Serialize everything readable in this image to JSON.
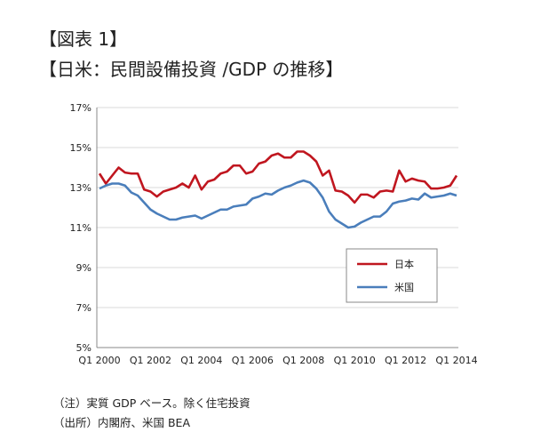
{
  "header": {
    "label": "【図表 1】",
    "title": "【日米：民間設備投資 /GDP の推移】"
  },
  "notes": [
    "（注）実質 GDP ベース。除く住宅投資",
    "（出所）内閣府、米国 BEA"
  ],
  "chart_data": {
    "type": "line",
    "title": "日米：民間設備投資 /GDP の推移",
    "xlabel": "",
    "ylabel": "",
    "x_start": "2000 Q1",
    "x_end": "2014 Q1",
    "frequency": "quarterly",
    "xticks": [
      "Q1 2000",
      "Q1 2002",
      "Q1 2004",
      "Q1 2006",
      "Q1 2008",
      "Q1 2010",
      "Q1 2012",
      "Q1 2014"
    ],
    "yticks": [
      "5%",
      "7%",
      "9%",
      "11%",
      "13%",
      "15%",
      "17%"
    ],
    "ylim": [
      5,
      17
    ],
    "grid": true,
    "legend_position": "lower-right",
    "series": [
      {
        "name": "日本",
        "color": "#c0161f",
        "values": [
          13.7,
          13.2,
          13.6,
          14.0,
          13.75,
          13.7,
          13.7,
          12.9,
          12.8,
          12.55,
          12.8,
          12.9,
          13.0,
          13.2,
          13.0,
          13.6,
          12.9,
          13.3,
          13.4,
          13.7,
          13.8,
          14.1,
          14.1,
          13.7,
          13.8,
          14.2,
          14.3,
          14.6,
          14.7,
          14.5,
          14.5,
          14.8,
          14.8,
          14.6,
          14.3,
          13.6,
          13.85,
          12.85,
          12.8,
          12.6,
          12.25,
          12.65,
          12.65,
          12.5,
          12.8,
          12.85,
          12.8,
          13.85,
          13.3,
          13.45,
          13.35,
          13.3,
          12.95,
          12.95,
          13.0,
          13.1,
          13.6
        ]
      },
      {
        "name": "米国",
        "color": "#4a7ebb",
        "values": [
          12.95,
          13.1,
          13.2,
          13.2,
          13.1,
          12.75,
          12.6,
          12.25,
          11.9,
          11.7,
          11.55,
          11.4,
          11.4,
          11.5,
          11.55,
          11.6,
          11.45,
          11.6,
          11.75,
          11.9,
          11.9,
          12.05,
          12.1,
          12.15,
          12.45,
          12.55,
          12.7,
          12.65,
          12.85,
          13.0,
          13.1,
          13.25,
          13.35,
          13.25,
          12.95,
          12.5,
          11.8,
          11.4,
          11.2,
          11.0,
          11.05,
          11.25,
          11.4,
          11.55,
          11.55,
          11.8,
          12.2,
          12.3,
          12.35,
          12.45,
          12.4,
          12.7,
          12.5,
          12.55,
          12.6,
          12.7,
          12.6
        ]
      }
    ]
  }
}
